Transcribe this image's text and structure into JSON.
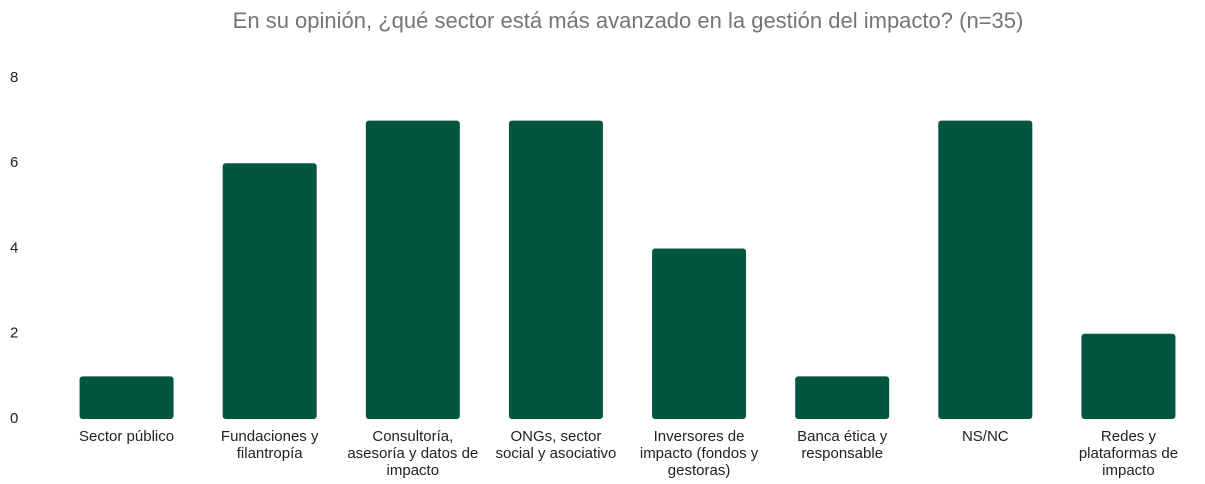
{
  "chart_data": {
    "type": "bar",
    "title": "En su opinión, ¿qué sector está más avanzado en la gestión del impacto? (n=35)",
    "categories": [
      "Sector público",
      "Fundaciones y filantropía",
      "Consultoría, asesoría y datos de impacto",
      "ONGs, sector social y asociativo",
      "Inversores de impacto (fondos y gestoras)",
      "Banca ética y responsable",
      "NS/NC",
      "Redes y plataformas de impacto"
    ],
    "values": [
      1,
      6,
      7,
      7,
      4,
      1,
      7,
      2
    ],
    "color": "#02563f",
    "ylim": [
      0,
      8
    ],
    "yticks": [
      0,
      2,
      4,
      6,
      8
    ],
    "grid": false
  }
}
